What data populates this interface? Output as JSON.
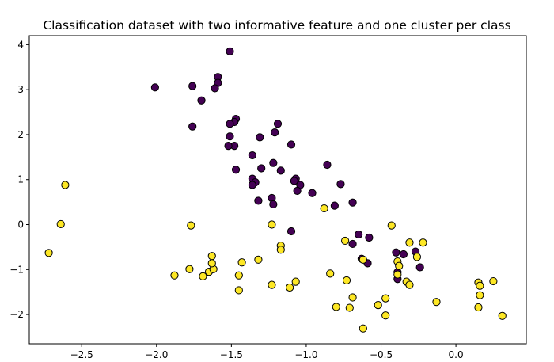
{
  "chart_data": {
    "type": "scatter",
    "title": "Classification dataset with two informative feature and one cluster per class",
    "xlabel": "",
    "ylabel": "",
    "xlim": [
      -2.85,
      0.47
    ],
    "ylim": [
      -2.65,
      4.2
    ],
    "xticks": [
      -2.5,
      -2.0,
      -1.5,
      -1.0,
      -0.5,
      0.0
    ],
    "xtick_labels": [
      "−2.5",
      "−2.0",
      "−1.5",
      "−1.0",
      "−0.5",
      "0.0"
    ],
    "yticks": [
      -2,
      -1,
      0,
      1,
      2,
      3,
      4
    ],
    "ytick_labels": [
      "−2",
      "−1",
      "0",
      "1",
      "2",
      "3",
      "4"
    ],
    "grid": false,
    "legend": "none",
    "series": [
      {
        "color": "#440154",
        "points": [
          [
            -1.51,
            3.85
          ],
          [
            -1.59,
            3.28
          ],
          [
            -1.59,
            3.15
          ],
          [
            -1.61,
            3.03
          ],
          [
            -2.01,
            3.05
          ],
          [
            -1.76,
            3.08
          ],
          [
            -1.7,
            2.76
          ],
          [
            -1.76,
            2.18
          ],
          [
            -1.47,
            2.35
          ],
          [
            -1.48,
            2.28
          ],
          [
            -1.51,
            2.24
          ],
          [
            -1.51,
            1.96
          ],
          [
            -1.48,
            1.75
          ],
          [
            -1.52,
            1.75
          ],
          [
            -1.31,
            1.94
          ],
          [
            -1.19,
            2.24
          ],
          [
            -1.21,
            2.05
          ],
          [
            -1.1,
            1.78
          ],
          [
            -1.36,
            1.54
          ],
          [
            -1.3,
            1.25
          ],
          [
            -1.47,
            1.22
          ],
          [
            -1.17,
            1.2
          ],
          [
            -1.22,
            1.37
          ],
          [
            -1.36,
            1.02
          ],
          [
            -1.34,
            0.94
          ],
          [
            -1.36,
            0.88
          ],
          [
            -1.32,
            0.53
          ],
          [
            -1.23,
            0.59
          ],
          [
            -1.22,
            0.45
          ],
          [
            -1.07,
            1.02
          ],
          [
            -1.08,
            0.97
          ],
          [
            -1.04,
            0.88
          ],
          [
            -1.06,
            0.75
          ],
          [
            -0.96,
            0.7
          ],
          [
            -0.86,
            1.33
          ],
          [
            -0.77,
            0.9
          ],
          [
            -0.81,
            0.42
          ],
          [
            -0.69,
            0.49
          ],
          [
            -1.1,
            -0.15
          ],
          [
            -0.65,
            -0.22
          ],
          [
            -0.58,
            -0.29
          ],
          [
            -0.69,
            -0.43
          ],
          [
            -0.63,
            -0.76
          ],
          [
            -0.59,
            -0.86
          ],
          [
            -0.4,
            -0.62
          ],
          [
            -0.35,
            -0.66
          ],
          [
            -0.27,
            -0.6
          ],
          [
            -0.24,
            -0.95
          ],
          [
            -0.39,
            -1.06
          ],
          [
            -0.39,
            -1.21
          ]
        ]
      },
      {
        "color": "#fde725",
        "points": [
          [
            -2.61,
            0.88
          ],
          [
            -2.64,
            0.01
          ],
          [
            -2.72,
            -0.63
          ],
          [
            -1.88,
            -1.13
          ],
          [
            -1.77,
            -0.02
          ],
          [
            -1.78,
            -0.99
          ],
          [
            -1.69,
            -1.15
          ],
          [
            -1.65,
            -1.05
          ],
          [
            -1.62,
            -0.99
          ],
          [
            -1.63,
            -0.7
          ],
          [
            -1.63,
            -0.86
          ],
          [
            -1.43,
            -0.84
          ],
          [
            -1.45,
            -1.13
          ],
          [
            -1.45,
            -1.46
          ],
          [
            -1.32,
            -0.78
          ],
          [
            -1.23,
            0.0
          ],
          [
            -1.23,
            -1.34
          ],
          [
            -1.17,
            -0.47
          ],
          [
            -1.17,
            -0.56
          ],
          [
            -1.11,
            -1.4
          ],
          [
            -1.07,
            -1.27
          ],
          [
            -0.88,
            0.36
          ],
          [
            -0.84,
            -1.09
          ],
          [
            -0.8,
            -1.83
          ],
          [
            -0.74,
            -0.36
          ],
          [
            -0.73,
            -1.24
          ],
          [
            -0.71,
            -1.85
          ],
          [
            -0.69,
            -1.62
          ],
          [
            -0.62,
            -2.31
          ],
          [
            -0.62,
            -0.78
          ],
          [
            -0.52,
            -1.79
          ],
          [
            -0.47,
            -1.64
          ],
          [
            -0.47,
            -2.02
          ],
          [
            -0.43,
            -0.02
          ],
          [
            -0.39,
            -0.82
          ],
          [
            -0.39,
            -1.11
          ],
          [
            -0.38,
            -0.92
          ],
          [
            -0.33,
            -1.27
          ],
          [
            -0.31,
            -1.34
          ],
          [
            -0.31,
            -0.4
          ],
          [
            -0.26,
            -0.72
          ],
          [
            -0.22,
            -0.4
          ],
          [
            -0.13,
            -1.72
          ],
          [
            0.15,
            -1.29
          ],
          [
            0.16,
            -1.36
          ],
          [
            0.16,
            -1.57
          ],
          [
            0.15,
            -1.84
          ],
          [
            0.25,
            -1.26
          ],
          [
            0.31,
            -2.03
          ]
        ]
      }
    ]
  }
}
